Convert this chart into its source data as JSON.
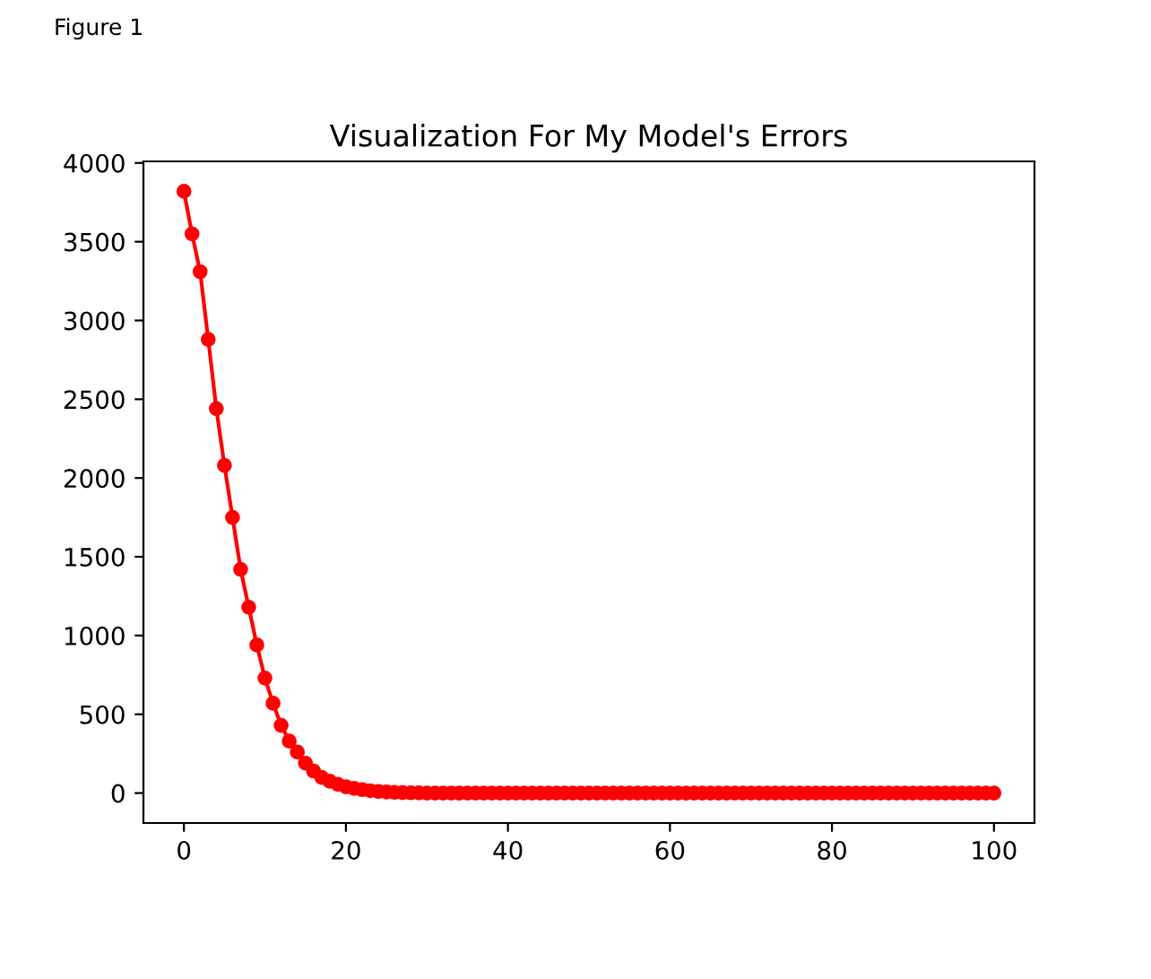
{
  "chart_data": {
    "type": "line",
    "title": "Visualization For My Model's Errors",
    "annotations": [
      "Figure 1"
    ],
    "x": [
      0,
      1,
      2,
      3,
      4,
      5,
      6,
      7,
      8,
      9,
      10,
      11,
      12,
      13,
      14,
      15,
      16,
      17,
      18,
      19,
      20,
      21,
      22,
      23,
      24,
      25,
      26,
      27,
      28,
      29,
      30,
      31,
      32,
      33,
      34,
      35,
      36,
      37,
      38,
      39,
      40,
      41,
      42,
      43,
      44,
      45,
      46,
      47,
      48,
      49,
      50,
      51,
      52,
      53,
      54,
      55,
      56,
      57,
      58,
      59,
      60,
      61,
      62,
      63,
      64,
      65,
      66,
      67,
      68,
      69,
      70,
      71,
      72,
      73,
      74,
      75,
      76,
      77,
      78,
      79,
      80,
      81,
      82,
      83,
      84,
      85,
      86,
      87,
      88,
      89,
      90,
      91,
      92,
      93,
      94,
      95,
      96,
      97,
      98,
      99,
      100
    ],
    "series": [
      {
        "color": "#ff0000",
        "values": [
          3820,
          3550,
          3310,
          2880,
          2440,
          2080,
          1750,
          1420,
          1180,
          940,
          730,
          570,
          430,
          330,
          260,
          190,
          140,
          100,
          75,
          55,
          40,
          30,
          22,
          15,
          10,
          7,
          5,
          3,
          2,
          1,
          0,
          0,
          0,
          0,
          0,
          0,
          0,
          0,
          0,
          0,
          0,
          0,
          0,
          0,
          0,
          0,
          0,
          0,
          0,
          0,
          0,
          0,
          0,
          0,
          0,
          0,
          0,
          0,
          0,
          0,
          0,
          0,
          0,
          0,
          0,
          0,
          0,
          0,
          0,
          0,
          0,
          0,
          0,
          0,
          0,
          0,
          0,
          0,
          0,
          0,
          0,
          0,
          0,
          0,
          0,
          0,
          0,
          0,
          0,
          0,
          0,
          0,
          0,
          0,
          0,
          0,
          0,
          0,
          0,
          0,
          0
        ]
      }
    ],
    "xlim": [
      -5,
      105
    ],
    "ylim": [
      -190,
      4010
    ],
    "xticks": [
      0,
      20,
      40,
      60,
      80,
      100
    ],
    "yticks": [
      0,
      500,
      1000,
      1500,
      2000,
      2500,
      3000,
      3500,
      4000
    ],
    "marker": "circle",
    "line_style": "solid",
    "grid": false
  }
}
